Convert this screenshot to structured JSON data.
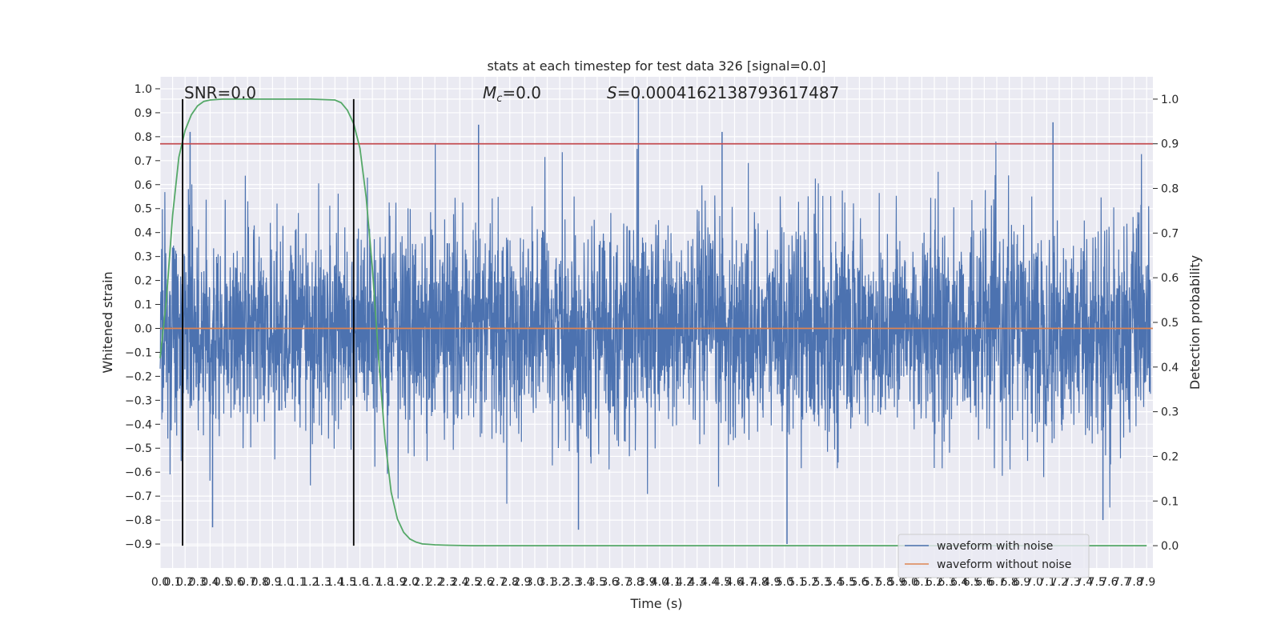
{
  "chart_data": {
    "type": "line",
    "title": "stats at each timestep for test data 326 [signal=0.0]",
    "xlabel": "Time (s)",
    "ylabel": "Whitened strain",
    "y2label": "Detection probability",
    "xlim": [
      0.0,
      7.95
    ],
    "ylim": [
      -1.0,
      1.05
    ],
    "y2lim": [
      -0.05,
      1.05
    ],
    "grid": true,
    "x_ticks": [
      "0.0",
      "0.1",
      "0.2",
      "0.3",
      "0.4",
      "0.5",
      "0.6",
      "0.7",
      "0.8",
      "0.9",
      "1.0",
      "1.1",
      "1.2",
      "1.3",
      "1.4",
      "1.5",
      "1.6",
      "1.7",
      "1.8",
      "1.9",
      "2.0",
      "2.1",
      "2.2",
      "2.3",
      "2.4",
      "2.5",
      "2.6",
      "2.7",
      "2.8",
      "2.9",
      "3.0",
      "3.1",
      "3.2",
      "3.3",
      "3.4",
      "3.5",
      "3.6",
      "3.7",
      "3.8",
      "3.9",
      "4.0",
      "4.1",
      "4.2",
      "4.3",
      "4.4",
      "4.5",
      "4.6",
      "4.7",
      "4.8",
      "4.9",
      "5.0",
      "5.1",
      "5.2",
      "5.3",
      "5.4",
      "5.5",
      "5.6",
      "5.7",
      "5.8",
      "5.9",
      "6.0",
      "6.1",
      "6.2",
      "6.3",
      "6.4",
      "6.5",
      "6.6",
      "6.7",
      "6.8",
      "6.9",
      "7.0",
      "7.1",
      "7.2",
      "7.3",
      "7.4",
      "7.5",
      "7.6",
      "7.7",
      "7.8",
      "7.9"
    ],
    "y_ticks": [
      "−0.9",
      "−0.8",
      "−0.7",
      "−0.6",
      "−0.5",
      "−0.4",
      "−0.3",
      "−0.2",
      "−0.1",
      "0.0",
      "0.1",
      "0.2",
      "0.3",
      "0.4",
      "0.5",
      "0.6",
      "0.7",
      "0.8",
      "0.9",
      "1.0"
    ],
    "y2_ticks": [
      "0.0",
      "0.1",
      "0.2",
      "0.3",
      "0.4",
      "0.5",
      "0.6",
      "0.7",
      "0.8",
      "0.9",
      "1.0"
    ],
    "annotations": {
      "snr": "SNR=0.0",
      "mc_symbol": "M",
      "mc_sub": "c",
      "mc_value": "=0.0",
      "s_symbol": "S",
      "s_value": "=0.0004162138793617487"
    },
    "threshold": 0.9,
    "vertical_markers": [
      0.18,
      1.55
    ],
    "series": [
      {
        "name": "waveform with noise",
        "axis": "left",
        "color": "#4c72b0",
        "description": "dense noise, roughly within -0.85 to 1.0 around 0",
        "peaks_approx": [
          {
            "x": 0.24,
            "y": 0.82
          },
          {
            "x": 2.55,
            "y": 0.85
          },
          {
            "x": 3.83,
            "y": 1.0
          },
          {
            "x": 4.5,
            "y": 0.82
          },
          {
            "x": 7.15,
            "y": 0.86
          }
        ],
        "troughs_approx": [
          {
            "x": 0.42,
            "y": -0.83
          },
          {
            "x": 3.35,
            "y": -0.84
          },
          {
            "x": 5.02,
            "y": -0.9
          },
          {
            "x": 7.55,
            "y": -0.8
          }
        ]
      },
      {
        "name": "waveform without noise",
        "axis": "left",
        "color": "#dd8452",
        "x": [
          0.0,
          7.95
        ],
        "y": [
          0.0,
          0.0
        ]
      },
      {
        "name": "detection probability",
        "axis": "right",
        "color": "#55a868",
        "x": [
          0.0,
          0.05,
          0.1,
          0.15,
          0.2,
          0.25,
          0.3,
          0.35,
          0.4,
          0.5,
          0.6,
          0.8,
          1.0,
          1.2,
          1.4,
          1.45,
          1.5,
          1.55,
          1.6,
          1.65,
          1.7,
          1.75,
          1.8,
          1.85,
          1.9,
          1.95,
          2.0,
          2.05,
          2.1,
          2.2,
          2.3,
          2.5,
          3.0,
          4.0,
          5.0,
          6.0,
          7.0,
          7.9
        ],
        "y": [
          0.42,
          0.55,
          0.74,
          0.87,
          0.93,
          0.965,
          0.985,
          0.995,
          0.998,
          1.0,
          1.0,
          1.0,
          1.0,
          1.0,
          0.998,
          0.992,
          0.975,
          0.945,
          0.89,
          0.78,
          0.62,
          0.42,
          0.24,
          0.12,
          0.06,
          0.03,
          0.015,
          0.008,
          0.004,
          0.002,
          0.001,
          0.0,
          0.0,
          0.0,
          0.0,
          0.0,
          0.0,
          0.0
        ]
      },
      {
        "name": "threshold",
        "axis": "right",
        "color": "#c44e52",
        "x": [
          0.0,
          7.95
        ],
        "y": [
          0.9,
          0.9
        ]
      }
    ],
    "legend": {
      "entries": [
        "waveform with noise",
        "waveform without noise"
      ],
      "colors": [
        "#4c72b0",
        "#dd8452"
      ],
      "position": "lower-right"
    }
  }
}
